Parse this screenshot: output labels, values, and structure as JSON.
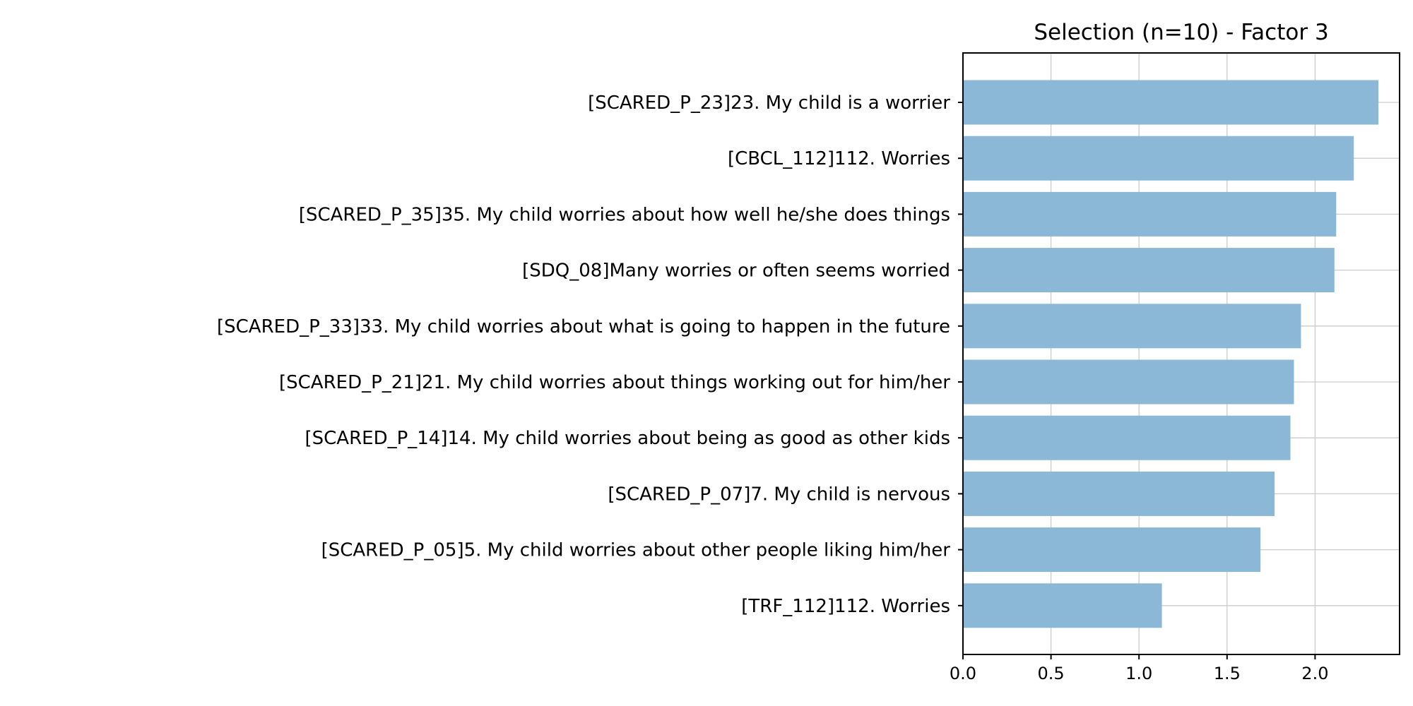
{
  "chart_data": {
    "type": "bar",
    "orientation": "horizontal",
    "title": "Selection (n=10) - Factor 3",
    "xlabel": "",
    "ylabel": "",
    "xlim": [
      0,
      2.48
    ],
    "xticks": [
      0.0,
      0.5,
      1.0,
      1.5,
      2.0
    ],
    "xtick_labels": [
      "0.0",
      "0.5",
      "1.0",
      "1.5",
      "2.0"
    ],
    "grid": true,
    "bar_color": "#8cb8d8",
    "categories": [
      "[SCARED_P_23]23. My child is a worrier",
      "[CBCL_112]112. Worries",
      "[SCARED_P_35]35. My child worries about how well he/she does things",
      "[SDQ_08]Many worries or often seems worried",
      "[SCARED_P_33]33. My child worries about what is going to happen in the future",
      "[SCARED_P_21]21. My child worries about things working out for him/her",
      "[SCARED_P_14]14. My child worries about being as good as other kids",
      "[SCARED_P_07]7. My child is nervous",
      "[SCARED_P_05]5. My child worries about other people liking him/her",
      "[TRF_112]112. Worries"
    ],
    "values": [
      2.36,
      2.22,
      2.12,
      2.11,
      1.92,
      1.88,
      1.86,
      1.77,
      1.69,
      1.13
    ]
  }
}
